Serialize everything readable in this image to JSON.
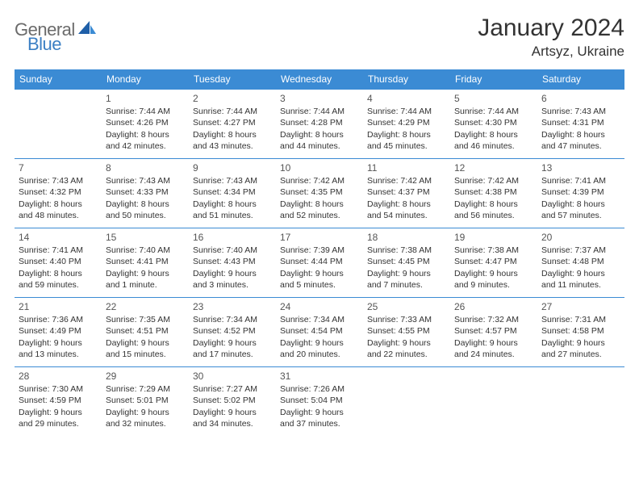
{
  "brand": {
    "part1": "General",
    "part2": "Blue"
  },
  "title": "January 2024",
  "location": "Artsyz, Ukraine",
  "header_bg": "#3b8bd4",
  "border_color": "#3b8bd4",
  "text_color": "#333333",
  "font_family": "Arial, Helvetica, sans-serif",
  "day_headers": [
    "Sunday",
    "Monday",
    "Tuesday",
    "Wednesday",
    "Thursday",
    "Friday",
    "Saturday"
  ],
  "weeks": [
    [
      null,
      {
        "n": "1",
        "sunrise": "Sunrise: 7:44 AM",
        "sunset": "Sunset: 4:26 PM",
        "daylight": "Daylight: 8 hours and 42 minutes."
      },
      {
        "n": "2",
        "sunrise": "Sunrise: 7:44 AM",
        "sunset": "Sunset: 4:27 PM",
        "daylight": "Daylight: 8 hours and 43 minutes."
      },
      {
        "n": "3",
        "sunrise": "Sunrise: 7:44 AM",
        "sunset": "Sunset: 4:28 PM",
        "daylight": "Daylight: 8 hours and 44 minutes."
      },
      {
        "n": "4",
        "sunrise": "Sunrise: 7:44 AM",
        "sunset": "Sunset: 4:29 PM",
        "daylight": "Daylight: 8 hours and 45 minutes."
      },
      {
        "n": "5",
        "sunrise": "Sunrise: 7:44 AM",
        "sunset": "Sunset: 4:30 PM",
        "daylight": "Daylight: 8 hours and 46 minutes."
      },
      {
        "n": "6",
        "sunrise": "Sunrise: 7:43 AM",
        "sunset": "Sunset: 4:31 PM",
        "daylight": "Daylight: 8 hours and 47 minutes."
      }
    ],
    [
      {
        "n": "7",
        "sunrise": "Sunrise: 7:43 AM",
        "sunset": "Sunset: 4:32 PM",
        "daylight": "Daylight: 8 hours and 48 minutes."
      },
      {
        "n": "8",
        "sunrise": "Sunrise: 7:43 AM",
        "sunset": "Sunset: 4:33 PM",
        "daylight": "Daylight: 8 hours and 50 minutes."
      },
      {
        "n": "9",
        "sunrise": "Sunrise: 7:43 AM",
        "sunset": "Sunset: 4:34 PM",
        "daylight": "Daylight: 8 hours and 51 minutes."
      },
      {
        "n": "10",
        "sunrise": "Sunrise: 7:42 AM",
        "sunset": "Sunset: 4:35 PM",
        "daylight": "Daylight: 8 hours and 52 minutes."
      },
      {
        "n": "11",
        "sunrise": "Sunrise: 7:42 AM",
        "sunset": "Sunset: 4:37 PM",
        "daylight": "Daylight: 8 hours and 54 minutes."
      },
      {
        "n": "12",
        "sunrise": "Sunrise: 7:42 AM",
        "sunset": "Sunset: 4:38 PM",
        "daylight": "Daylight: 8 hours and 56 minutes."
      },
      {
        "n": "13",
        "sunrise": "Sunrise: 7:41 AM",
        "sunset": "Sunset: 4:39 PM",
        "daylight": "Daylight: 8 hours and 57 minutes."
      }
    ],
    [
      {
        "n": "14",
        "sunrise": "Sunrise: 7:41 AM",
        "sunset": "Sunset: 4:40 PM",
        "daylight": "Daylight: 8 hours and 59 minutes."
      },
      {
        "n": "15",
        "sunrise": "Sunrise: 7:40 AM",
        "sunset": "Sunset: 4:41 PM",
        "daylight": "Daylight: 9 hours and 1 minute."
      },
      {
        "n": "16",
        "sunrise": "Sunrise: 7:40 AM",
        "sunset": "Sunset: 4:43 PM",
        "daylight": "Daylight: 9 hours and 3 minutes."
      },
      {
        "n": "17",
        "sunrise": "Sunrise: 7:39 AM",
        "sunset": "Sunset: 4:44 PM",
        "daylight": "Daylight: 9 hours and 5 minutes."
      },
      {
        "n": "18",
        "sunrise": "Sunrise: 7:38 AM",
        "sunset": "Sunset: 4:45 PM",
        "daylight": "Daylight: 9 hours and 7 minutes."
      },
      {
        "n": "19",
        "sunrise": "Sunrise: 7:38 AM",
        "sunset": "Sunset: 4:47 PM",
        "daylight": "Daylight: 9 hours and 9 minutes."
      },
      {
        "n": "20",
        "sunrise": "Sunrise: 7:37 AM",
        "sunset": "Sunset: 4:48 PM",
        "daylight": "Daylight: 9 hours and 11 minutes."
      }
    ],
    [
      {
        "n": "21",
        "sunrise": "Sunrise: 7:36 AM",
        "sunset": "Sunset: 4:49 PM",
        "daylight": "Daylight: 9 hours and 13 minutes."
      },
      {
        "n": "22",
        "sunrise": "Sunrise: 7:35 AM",
        "sunset": "Sunset: 4:51 PM",
        "daylight": "Daylight: 9 hours and 15 minutes."
      },
      {
        "n": "23",
        "sunrise": "Sunrise: 7:34 AM",
        "sunset": "Sunset: 4:52 PM",
        "daylight": "Daylight: 9 hours and 17 minutes."
      },
      {
        "n": "24",
        "sunrise": "Sunrise: 7:34 AM",
        "sunset": "Sunset: 4:54 PM",
        "daylight": "Daylight: 9 hours and 20 minutes."
      },
      {
        "n": "25",
        "sunrise": "Sunrise: 7:33 AM",
        "sunset": "Sunset: 4:55 PM",
        "daylight": "Daylight: 9 hours and 22 minutes."
      },
      {
        "n": "26",
        "sunrise": "Sunrise: 7:32 AM",
        "sunset": "Sunset: 4:57 PM",
        "daylight": "Daylight: 9 hours and 24 minutes."
      },
      {
        "n": "27",
        "sunrise": "Sunrise: 7:31 AM",
        "sunset": "Sunset: 4:58 PM",
        "daylight": "Daylight: 9 hours and 27 minutes."
      }
    ],
    [
      {
        "n": "28",
        "sunrise": "Sunrise: 7:30 AM",
        "sunset": "Sunset: 4:59 PM",
        "daylight": "Daylight: 9 hours and 29 minutes."
      },
      {
        "n": "29",
        "sunrise": "Sunrise: 7:29 AM",
        "sunset": "Sunset: 5:01 PM",
        "daylight": "Daylight: 9 hours and 32 minutes."
      },
      {
        "n": "30",
        "sunrise": "Sunrise: 7:27 AM",
        "sunset": "Sunset: 5:02 PM",
        "daylight": "Daylight: 9 hours and 34 minutes."
      },
      {
        "n": "31",
        "sunrise": "Sunrise: 7:26 AM",
        "sunset": "Sunset: 5:04 PM",
        "daylight": "Daylight: 9 hours and 37 minutes."
      },
      null,
      null,
      null
    ]
  ]
}
